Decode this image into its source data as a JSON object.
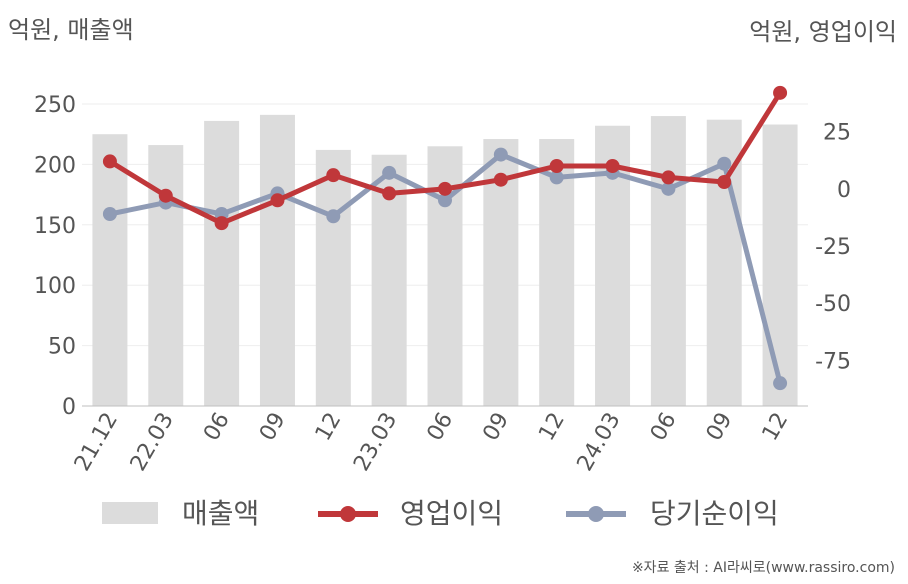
{
  "chart_data": {
    "type": "bar",
    "left_axis_unit": "억원, 매출액",
    "right_axis_unit": "억원, 영업이익",
    "categories": [
      "21.12",
      "22.03",
      "06",
      "09",
      "12",
      "23.03",
      "06",
      "09",
      "12",
      "24.03",
      "06",
      "09",
      "12"
    ],
    "y_left": {
      "range": [
        0,
        250
      ],
      "ticks": [
        "0",
        "50",
        "100",
        "150",
        "200",
        "250"
      ]
    },
    "y_right": {
      "range": [
        -95,
        45
      ],
      "ticks": [
        "25",
        "0",
        "-25",
        "-50",
        "-75"
      ]
    },
    "series": [
      {
        "name": "매출액",
        "type": "bar",
        "axis": "left",
        "values": [
          225,
          216,
          236,
          241,
          212,
          208,
          215,
          221,
          221,
          232,
          240,
          237,
          233
        ]
      },
      {
        "name": "영업이익",
        "type": "line",
        "axis": "right",
        "values": [
          12,
          -3,
          -15,
          -5,
          6,
          -2,
          0,
          4,
          10,
          10,
          5,
          3,
          42
        ]
      },
      {
        "name": "당기순이익",
        "type": "line",
        "axis": "right",
        "values": [
          -11,
          -6,
          -11,
          -2,
          -12,
          7,
          -5,
          15,
          5,
          7,
          0,
          11,
          -85
        ]
      }
    ],
    "legend_position": "bottom",
    "grid": true
  },
  "colors": {
    "bar": "#dcdcdc",
    "operating": "#c0373a",
    "net": "#8f9bb5",
    "axis_text": "#555555",
    "grid": "#eeeeee"
  },
  "source": "※자료 출처 : AI라씨로(www.rassiro.com)"
}
